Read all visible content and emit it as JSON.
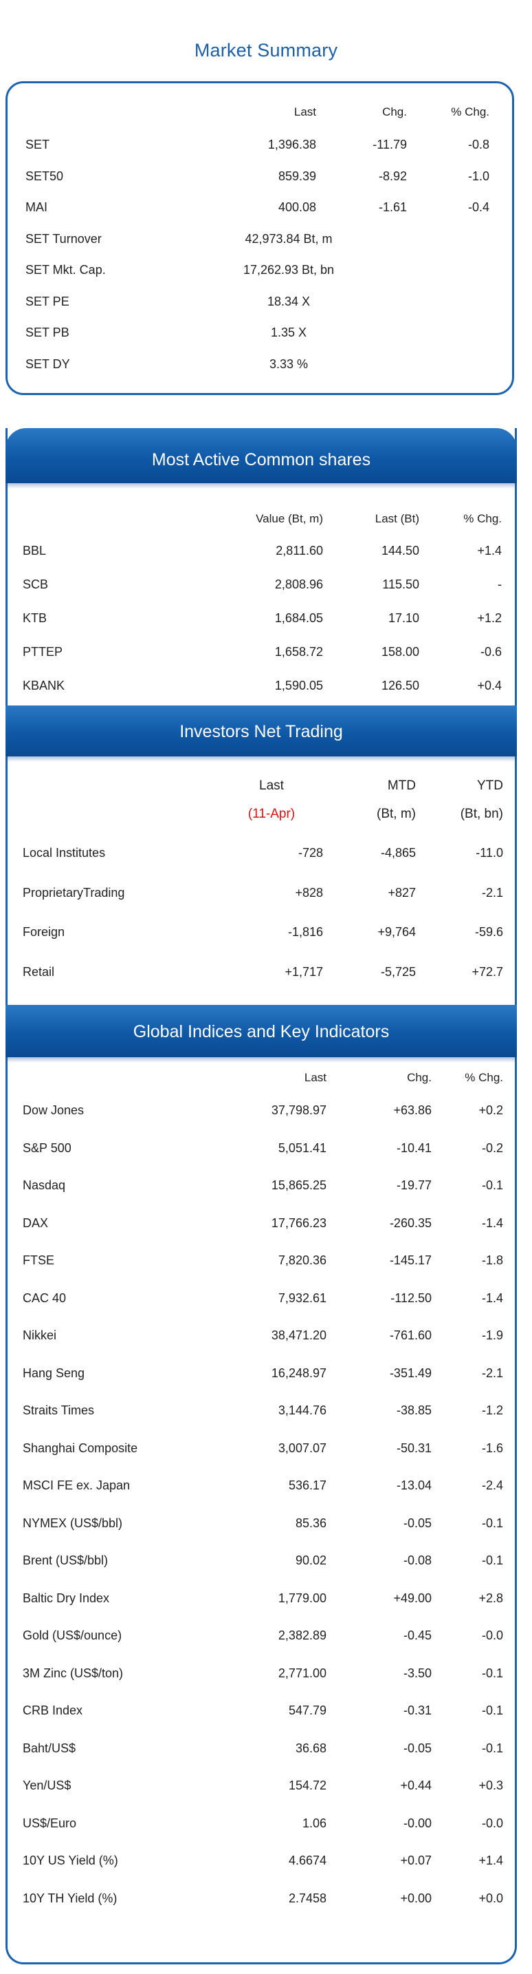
{
  "market_summary": {
    "title": "Market Summary",
    "headers": {
      "last": "Last",
      "chg": "Chg.",
      "pct": "% Chg."
    },
    "rows": [
      {
        "name": "SET",
        "last": "1,396.38",
        "chg": "-11.79",
        "pct": "-0.8"
      },
      {
        "name": "SET50",
        "last": "859.39",
        "chg": "-8.92",
        "pct": "-1.0"
      },
      {
        "name": "MAI",
        "last": "400.08",
        "chg": "-1.61",
        "pct": "-0.4"
      },
      {
        "name": "SET Turnover",
        "last": "42,973.84 Bt, m"
      },
      {
        "name": "SET Mkt. Cap.",
        "last": "17,262.93 Bt, bn"
      },
      {
        "name": "SET PE",
        "last": "18.34 X"
      },
      {
        "name": "SET PB",
        "last": "1.35 X"
      },
      {
        "name": "SET DY",
        "last": "3.33 %"
      }
    ]
  },
  "most_active": {
    "title": "Most Active Common shares",
    "headers": {
      "value": "Value (Bt, m)",
      "last": "Last (Bt)",
      "pct": "% Chg."
    },
    "rows": [
      {
        "name": "BBL",
        "value": "2,811.60",
        "last": "144.50",
        "pct": "+1.4"
      },
      {
        "name": "SCB",
        "value": "2,808.96",
        "last": "115.50",
        "pct": "-"
      },
      {
        "name": "KTB",
        "value": "1,684.05",
        "last": "17.10",
        "pct": "+1.2"
      },
      {
        "name": "PTTEP",
        "value": "1,658.72",
        "last": "158.00",
        "pct": "-0.6"
      },
      {
        "name": "KBANK",
        "value": "1,590.05",
        "last": "126.50",
        "pct": "+0.4"
      }
    ]
  },
  "investors": {
    "title": "Investors Net Trading",
    "headers": {
      "last": "Last",
      "mtd": "MTD",
      "ytd": "YTD",
      "date": "(11-Apr)",
      "mtd_unit": "(Bt, m)",
      "ytd_unit": "(Bt, bn)"
    },
    "rows": [
      {
        "name": "Local Institutes",
        "last": "-728",
        "mtd": "-4,865",
        "ytd": "-11.0"
      },
      {
        "name": "ProprietaryTrading",
        "last": "+828",
        "mtd": "+827",
        "ytd": "-2.1"
      },
      {
        "name": "Foreign",
        "last": "-1,816",
        "mtd": "+9,764",
        "ytd": "-59.6"
      },
      {
        "name": "Retail",
        "last": "+1,717",
        "mtd": "-5,725",
        "ytd": "+72.7"
      }
    ]
  },
  "global": {
    "title": "Global Indices and Key Indicators",
    "headers": {
      "last": "Last",
      "chg": "Chg.",
      "pct": "% Chg."
    },
    "rows": [
      {
        "name": "Dow Jones",
        "last": "37,798.97",
        "chg": "+63.86",
        "pct": "+0.2"
      },
      {
        "name": "S&P 500",
        "last": "5,051.41",
        "chg": "-10.41",
        "pct": "-0.2"
      },
      {
        "name": "Nasdaq",
        "last": "15,865.25",
        "chg": "-19.77",
        "pct": "-0.1"
      },
      {
        "name": "DAX",
        "last": "17,766.23",
        "chg": "-260.35",
        "pct": "-1.4"
      },
      {
        "name": "FTSE",
        "last": "7,820.36",
        "chg": "-145.17",
        "pct": "-1.8"
      },
      {
        "name": "CAC 40",
        "last": "7,932.61",
        "chg": "-112.50",
        "pct": "-1.4"
      },
      {
        "name": "Nikkei",
        "last": "38,471.20",
        "chg": "-761.60",
        "pct": "-1.9"
      },
      {
        "name": "Hang Seng",
        "last": "16,248.97",
        "chg": "-351.49",
        "pct": "-2.1"
      },
      {
        "name": "Straits Times",
        "last": "3,144.76",
        "chg": "-38.85",
        "pct": "-1.2"
      },
      {
        "name": "Shanghai Composite",
        "last": "3,007.07",
        "chg": "-50.31",
        "pct": "-1.6"
      },
      {
        "name": "MSCI FE ex. Japan",
        "last": "536.17",
        "chg": "-13.04",
        "pct": "-2.4"
      },
      {
        "name": "NYMEX (US$/bbl)",
        "last": "85.36",
        "chg": "-0.05",
        "pct": "-0.1"
      },
      {
        "name": "Brent (US$/bbl)",
        "last": "90.02",
        "chg": "-0.08",
        "pct": "-0.1"
      },
      {
        "name": "Baltic Dry Index",
        "last": "1,779.00",
        "chg": "+49.00",
        "pct": "+2.8"
      },
      {
        "name": "Gold (US$/ounce)",
        "last": "2,382.89",
        "chg": "-0.45",
        "pct": "-0.0"
      },
      {
        "name": "3M Zinc (US$/ton)",
        "last": "2,771.00",
        "chg": "-3.50",
        "pct": "-0.1"
      },
      {
        "name": "CRB Index",
        "last": "547.79",
        "chg": "-0.31",
        "pct": "-0.1"
      },
      {
        "name": "Baht/US$",
        "last": "36.68",
        "chg": "-0.05",
        "pct": "-0.1"
      },
      {
        "name": "Yen/US$",
        "last": "154.72",
        "chg": "+0.44",
        "pct": "+0.3"
      },
      {
        "name": "US$/Euro",
        "last": "1.06",
        "chg": "-0.00",
        "pct": "-0.0"
      },
      {
        "name": "10Y US Yield (%)",
        "last": "4.6674",
        "chg": "+0.07",
        "pct": "+1.4"
      },
      {
        "name": "10Y TH Yield (%)",
        "last": "2.7458",
        "chg": "+0.00",
        "pct": "+0.0"
      }
    ]
  },
  "colors": {
    "accent": "#1a63b0",
    "band": "#0f58a6",
    "highlight": "#e0100f"
  }
}
